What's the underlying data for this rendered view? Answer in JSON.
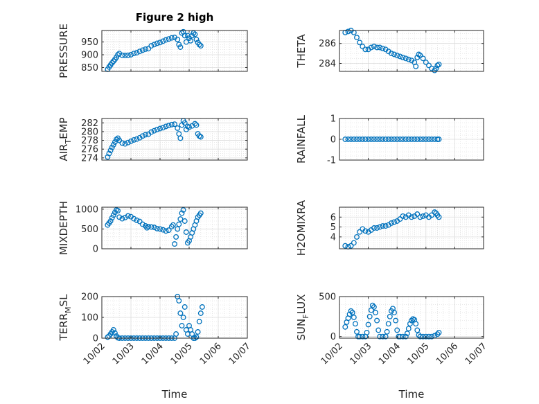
{
  "figure": {
    "title": "Figure 2 high",
    "xlabel": "Time",
    "x_tick_labels": [
      "10/02",
      "10/03",
      "10/04",
      "10/05",
      "10/06",
      "10/07"
    ],
    "marker_color": "#0072BD",
    "grid": "on (major + minor)"
  },
  "chart_data": [
    {
      "type": "scatter",
      "ylabel": "PRESSURE",
      "xlim": [
        "10/02",
        "10/07"
      ],
      "ylim": [
        835,
        995
      ],
      "yticks": [
        850,
        900,
        950
      ],
      "points": [
        [
          2.2,
          843
        ],
        [
          2.25,
          852
        ],
        [
          2.3,
          860
        ],
        [
          2.35,
          868
        ],
        [
          2.4,
          875
        ],
        [
          2.45,
          882
        ],
        [
          2.5,
          890
        ],
        [
          2.55,
          900
        ],
        [
          2.6,
          905
        ],
        [
          2.7,
          898
        ],
        [
          2.8,
          897
        ],
        [
          2.9,
          898
        ],
        [
          3.0,
          900
        ],
        [
          3.1,
          905
        ],
        [
          3.2,
          908
        ],
        [
          3.3,
          913
        ],
        [
          3.4,
          918
        ],
        [
          3.5,
          922
        ],
        [
          3.6,
          924
        ],
        [
          3.7,
          935
        ],
        [
          3.8,
          940
        ],
        [
          3.9,
          945
        ],
        [
          4.0,
          948
        ],
        [
          4.1,
          953
        ],
        [
          4.2,
          958
        ],
        [
          4.3,
          962
        ],
        [
          4.4,
          966
        ],
        [
          4.5,
          968
        ],
        [
          4.6,
          960
        ],
        [
          4.65,
          940
        ],
        [
          4.7,
          930
        ],
        [
          4.75,
          985
        ],
        [
          4.8,
          990
        ],
        [
          4.85,
          975
        ],
        [
          4.9,
          950
        ],
        [
          4.95,
          975
        ],
        [
          5.0,
          965
        ],
        [
          5.05,
          955
        ],
        [
          5.1,
          975
        ],
        [
          5.15,
          985
        ],
        [
          5.2,
          980
        ],
        [
          5.25,
          960
        ],
        [
          5.3,
          948
        ],
        [
          5.35,
          940
        ],
        [
          5.4,
          935
        ]
      ]
    },
    {
      "type": "scatter",
      "ylabel": "THETA",
      "xlim": [
        "10/02",
        "10/07"
      ],
      "ylim": [
        283.2,
        287.3
      ],
      "yticks": [
        284,
        286
      ],
      "points": [
        [
          2.2,
          287.1
        ],
        [
          2.3,
          287.2
        ],
        [
          2.4,
          287.3
        ],
        [
          2.5,
          287.1
        ],
        [
          2.6,
          286.6
        ],
        [
          2.7,
          286.1
        ],
        [
          2.8,
          285.7
        ],
        [
          2.9,
          285.4
        ],
        [
          3.0,
          285.4
        ],
        [
          3.1,
          285.6
        ],
        [
          3.2,
          285.7
        ],
        [
          3.3,
          285.6
        ],
        [
          3.4,
          285.6
        ],
        [
          3.5,
          285.5
        ],
        [
          3.6,
          285.4
        ],
        [
          3.7,
          285.2
        ],
        [
          3.8,
          285.0
        ],
        [
          3.9,
          284.9
        ],
        [
          4.0,
          284.8
        ],
        [
          4.1,
          284.7
        ],
        [
          4.2,
          284.6
        ],
        [
          4.3,
          284.5
        ],
        [
          4.4,
          284.4
        ],
        [
          4.5,
          284.3
        ],
        [
          4.6,
          284.1
        ],
        [
          4.65,
          283.7
        ],
        [
          4.7,
          284.6
        ],
        [
          4.75,
          284.9
        ],
        [
          4.8,
          284.8
        ],
        [
          4.9,
          284.5
        ],
        [
          5.0,
          284.1
        ],
        [
          5.1,
          283.8
        ],
        [
          5.2,
          283.5
        ],
        [
          5.3,
          283.3
        ],
        [
          5.35,
          283.5
        ],
        [
          5.4,
          283.8
        ],
        [
          5.45,
          283.9
        ]
      ]
    },
    {
      "type": "scatter",
      "ylabel": "AIR_TEMP",
      "ylabel_main": "AIR",
      "ylabel_sub": "T",
      "ylabel_rest": "EMP",
      "xlim": [
        "10/02",
        "10/07"
      ],
      "ylim": [
        273.5,
        283
      ],
      "yticks": [
        274,
        276,
        278,
        280,
        282
      ],
      "points": [
        [
          2.2,
          274.2
        ],
        [
          2.25,
          275.0
        ],
        [
          2.3,
          275.7
        ],
        [
          2.35,
          276.4
        ],
        [
          2.4,
          277.0
        ],
        [
          2.45,
          277.6
        ],
        [
          2.5,
          278.2
        ],
        [
          2.55,
          278.5
        ],
        [
          2.6,
          278.0
        ],
        [
          2.7,
          277.4
        ],
        [
          2.8,
          277.2
        ],
        [
          2.9,
          277.5
        ],
        [
          3.0,
          277.8
        ],
        [
          3.1,
          278.1
        ],
        [
          3.2,
          278.3
        ],
        [
          3.3,
          278.6
        ],
        [
          3.4,
          279.0
        ],
        [
          3.5,
          279.3
        ],
        [
          3.6,
          279.4
        ],
        [
          3.7,
          279.9
        ],
        [
          3.8,
          280.2
        ],
        [
          3.9,
          280.5
        ],
        [
          4.0,
          280.7
        ],
        [
          4.1,
          280.9
        ],
        [
          4.2,
          281.2
        ],
        [
          4.3,
          281.4
        ],
        [
          4.4,
          281.6
        ],
        [
          4.5,
          281.7
        ],
        [
          4.6,
          280.8
        ],
        [
          4.65,
          279.5
        ],
        [
          4.7,
          278.5
        ],
        [
          4.75,
          281.5
        ],
        [
          4.8,
          282.5
        ],
        [
          4.85,
          282.0
        ],
        [
          4.9,
          280.5
        ],
        [
          4.95,
          281.2
        ],
        [
          5.0,
          281.0
        ],
        [
          5.1,
          281.3
        ],
        [
          5.2,
          281.8
        ],
        [
          5.25,
          281.5
        ],
        [
          5.3,
          279.5
        ],
        [
          5.35,
          279.0
        ],
        [
          5.4,
          278.8
        ]
      ]
    },
    {
      "type": "scatter",
      "ylabel": "RAINFALL",
      "xlim": [
        "10/02",
        "10/07"
      ],
      "ylim": [
        -1,
        1
      ],
      "yticks": [
        -1,
        0,
        1
      ],
      "points": [
        [
          2.2,
          0
        ],
        [
          2.3,
          0
        ],
        [
          2.4,
          0
        ],
        [
          2.5,
          0
        ],
        [
          2.6,
          0
        ],
        [
          2.7,
          0
        ],
        [
          2.8,
          0
        ],
        [
          2.9,
          0
        ],
        [
          3.0,
          0
        ],
        [
          3.1,
          0
        ],
        [
          3.2,
          0
        ],
        [
          3.3,
          0
        ],
        [
          3.4,
          0
        ],
        [
          3.5,
          0
        ],
        [
          3.6,
          0
        ],
        [
          3.7,
          0
        ],
        [
          3.8,
          0
        ],
        [
          3.9,
          0
        ],
        [
          4.0,
          0
        ],
        [
          4.1,
          0
        ],
        [
          4.2,
          0
        ],
        [
          4.3,
          0
        ],
        [
          4.4,
          0
        ],
        [
          4.5,
          0
        ],
        [
          4.6,
          0
        ],
        [
          4.7,
          0
        ],
        [
          4.8,
          0
        ],
        [
          4.9,
          0
        ],
        [
          5.0,
          0
        ],
        [
          5.1,
          0
        ],
        [
          5.2,
          0
        ],
        [
          5.3,
          0
        ],
        [
          5.4,
          0
        ],
        [
          5.45,
          0
        ]
      ]
    },
    {
      "type": "scatter",
      "ylabel": "MIXDEPTH",
      "xlim": [
        "10/02",
        "10/07"
      ],
      "ylim": [
        0,
        1050
      ],
      "yticks": [
        0,
        500,
        1000
      ],
      "points": [
        [
          2.2,
          600
        ],
        [
          2.25,
          650
        ],
        [
          2.3,
          700
        ],
        [
          2.35,
          780
        ],
        [
          2.4,
          850
        ],
        [
          2.45,
          920
        ],
        [
          2.5,
          980
        ],
        [
          2.55,
          960
        ],
        [
          2.6,
          800
        ],
        [
          2.7,
          760
        ],
        [
          2.8,
          790
        ],
        [
          2.9,
          830
        ],
        [
          3.0,
          810
        ],
        [
          3.1,
          760
        ],
        [
          3.2,
          720
        ],
        [
          3.3,
          690
        ],
        [
          3.4,
          620
        ],
        [
          3.5,
          580
        ],
        [
          3.55,
          530
        ],
        [
          3.6,
          560
        ],
        [
          3.7,
          550
        ],
        [
          3.8,
          540
        ],
        [
          3.9,
          510
        ],
        [
          4.0,
          500
        ],
        [
          4.1,
          480
        ],
        [
          4.2,
          450
        ],
        [
          4.3,
          470
        ],
        [
          4.4,
          560
        ],
        [
          4.45,
          600
        ],
        [
          4.5,
          120
        ],
        [
          4.55,
          300
        ],
        [
          4.6,
          500
        ],
        [
          4.65,
          620
        ],
        [
          4.7,
          750
        ],
        [
          4.75,
          900
        ],
        [
          4.8,
          980
        ],
        [
          4.85,
          700
        ],
        [
          4.9,
          420
        ],
        [
          4.95,
          150
        ],
        [
          5.0,
          200
        ],
        [
          5.05,
          300
        ],
        [
          5.1,
          400
        ],
        [
          5.15,
          500
        ],
        [
          5.2,
          600
        ],
        [
          5.25,
          700
        ],
        [
          5.3,
          800
        ],
        [
          5.35,
          850
        ],
        [
          5.4,
          900
        ]
      ]
    },
    {
      "type": "scatter",
      "ylabel": "H2OMIXRA",
      "xlim": [
        "10/02",
        "10/07"
      ],
      "ylim": [
        2.8,
        7
      ],
      "yticks": [
        4,
        5,
        6
      ],
      "points": [
        [
          2.2,
          3.1
        ],
        [
          2.3,
          3.0
        ],
        [
          2.4,
          3.1
        ],
        [
          2.5,
          3.4
        ],
        [
          2.6,
          4.0
        ],
        [
          2.7,
          4.5
        ],
        [
          2.8,
          4.8
        ],
        [
          2.9,
          4.6
        ],
        [
          3.0,
          4.5
        ],
        [
          3.1,
          4.7
        ],
        [
          3.2,
          4.9
        ],
        [
          3.3,
          4.9
        ],
        [
          3.4,
          5.0
        ],
        [
          3.5,
          5.1
        ],
        [
          3.6,
          5.1
        ],
        [
          3.7,
          5.2
        ],
        [
          3.8,
          5.4
        ],
        [
          3.9,
          5.5
        ],
        [
          4.0,
          5.6
        ],
        [
          4.1,
          5.8
        ],
        [
          4.2,
          6.1
        ],
        [
          4.3,
          6.0
        ],
        [
          4.4,
          6.2
        ],
        [
          4.5,
          6.0
        ],
        [
          4.6,
          6.1
        ],
        [
          4.7,
          6.3
        ],
        [
          4.8,
          6.0
        ],
        [
          4.9,
          6.1
        ],
        [
          5.0,
          6.2
        ],
        [
          5.1,
          6.0
        ],
        [
          5.2,
          6.2
        ],
        [
          5.3,
          6.5
        ],
        [
          5.35,
          6.4
        ],
        [
          5.4,
          6.2
        ],
        [
          5.45,
          6.0
        ]
      ]
    },
    {
      "type": "scatter",
      "ylabel": "TERR_MSL",
      "ylabel_main": "TERR",
      "ylabel_sub": "M",
      "ylabel_rest": "SL",
      "xlim": [
        "10/02",
        "10/07"
      ],
      "ylim": [
        0,
        200
      ],
      "yticks": [
        0,
        100,
        200
      ],
      "points": [
        [
          2.2,
          5
        ],
        [
          2.25,
          10
        ],
        [
          2.3,
          20
        ],
        [
          2.35,
          30
        ],
        [
          2.4,
          40
        ],
        [
          2.45,
          25
        ],
        [
          2.5,
          10
        ],
        [
          2.55,
          2
        ],
        [
          2.6,
          0
        ],
        [
          2.7,
          0
        ],
        [
          2.8,
          0
        ],
        [
          2.9,
          0
        ],
        [
          3.0,
          0
        ],
        [
          3.1,
          0
        ],
        [
          3.2,
          0
        ],
        [
          3.3,
          0
        ],
        [
          3.4,
          0
        ],
        [
          3.5,
          0
        ],
        [
          3.6,
          0
        ],
        [
          3.7,
          0
        ],
        [
          3.8,
          0
        ],
        [
          3.9,
          0
        ],
        [
          4.0,
          0
        ],
        [
          4.1,
          0
        ],
        [
          4.2,
          0
        ],
        [
          4.3,
          0
        ],
        [
          4.4,
          0
        ],
        [
          4.5,
          0
        ],
        [
          4.55,
          20
        ],
        [
          4.6,
          200
        ],
        [
          4.65,
          180
        ],
        [
          4.7,
          120
        ],
        [
          4.75,
          60
        ],
        [
          4.8,
          100
        ],
        [
          4.85,
          150
        ],
        [
          4.9,
          40
        ],
        [
          4.95,
          20
        ],
        [
          5.0,
          60
        ],
        [
          5.05,
          40
        ],
        [
          5.1,
          20
        ],
        [
          5.15,
          0
        ],
        [
          5.2,
          0
        ],
        [
          5.25,
          5
        ],
        [
          5.3,
          30
        ],
        [
          5.35,
          80
        ],
        [
          5.4,
          120
        ],
        [
          5.45,
          150
        ]
      ]
    },
    {
      "type": "scatter",
      "ylabel": "SUN_FLUX",
      "ylabel_main": "SUN",
      "ylabel_sub": "F",
      "ylabel_rest": "LUX",
      "xlim": [
        "10/02",
        "10/07"
      ],
      "ylim": [
        -20,
        500
      ],
      "yticks": [
        0,
        500
      ],
      "points": [
        [
          2.2,
          120
        ],
        [
          2.25,
          180
        ],
        [
          2.3,
          230
        ],
        [
          2.35,
          280
        ],
        [
          2.4,
          320
        ],
        [
          2.45,
          300
        ],
        [
          2.5,
          240
        ],
        [
          2.55,
          160
        ],
        [
          2.6,
          60
        ],
        [
          2.65,
          0
        ],
        [
          2.7,
          0
        ],
        [
          2.8,
          0
        ],
        [
          2.9,
          0
        ],
        [
          2.95,
          50
        ],
        [
          3.0,
          150
        ],
        [
          3.05,
          250
        ],
        [
          3.1,
          330
        ],
        [
          3.15,
          390
        ],
        [
          3.2,
          370
        ],
        [
          3.25,
          300
        ],
        [
          3.3,
          200
        ],
        [
          3.35,
          80
        ],
        [
          3.4,
          0
        ],
        [
          3.5,
          0
        ],
        [
          3.6,
          0
        ],
        [
          3.65,
          60
        ],
        [
          3.7,
          160
        ],
        [
          3.75,
          250
        ],
        [
          3.8,
          320
        ],
        [
          3.85,
          350
        ],
        [
          3.9,
          300
        ],
        [
          3.95,
          200
        ],
        [
          4.0,
          80
        ],
        [
          4.05,
          0
        ],
        [
          4.1,
          0
        ],
        [
          4.2,
          0
        ],
        [
          4.3,
          0
        ],
        [
          4.35,
          40
        ],
        [
          4.4,
          100
        ],
        [
          4.45,
          160
        ],
        [
          4.5,
          200
        ],
        [
          4.55,
          220
        ],
        [
          4.6,
          210
        ],
        [
          4.65,
          160
        ],
        [
          4.7,
          80
        ],
        [
          4.75,
          20
        ],
        [
          4.8,
          0
        ],
        [
          4.9,
          0
        ],
        [
          5.0,
          0
        ],
        [
          5.1,
          0
        ],
        [
          5.2,
          0
        ],
        [
          5.3,
          10
        ],
        [
          5.4,
          30
        ],
        [
          5.45,
          50
        ]
      ]
    }
  ]
}
